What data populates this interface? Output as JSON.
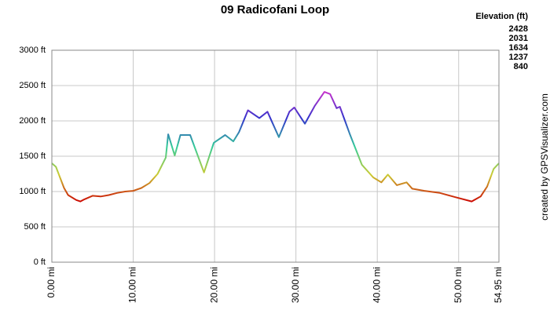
{
  "chart_data": {
    "type": "line",
    "title": "09 Radicofani Loop",
    "credit": "created by GPSVisualizer.com",
    "legend": {
      "title": "Elevation (ft)",
      "entries": [
        {
          "value": 2428,
          "color": "#cc33cc"
        },
        {
          "value": 2031,
          "color": "#3333cc"
        },
        {
          "value": 1634,
          "color": "#33cc99"
        },
        {
          "value": 1237,
          "color": "#cccc33"
        },
        {
          "value": 840,
          "color": "#cc0000"
        }
      ]
    },
    "x": [
      0,
      0.5,
      1,
      1.5,
      2,
      3,
      3.5,
      4,
      5,
      6,
      7,
      8,
      9,
      10,
      11,
      12,
      13,
      14,
      14.3,
      15.1,
      15.8,
      17,
      18.7,
      19.9,
      21.3,
      22.3,
      23,
      24.1,
      25.5,
      26.5,
      27.9,
      29.2,
      29.8,
      31.1,
      32.3,
      33.5,
      34.2,
      35,
      35.4,
      36.6,
      38.1,
      39.5,
      40.5,
      41.3,
      42.4,
      43.6,
      44.3,
      45.8,
      47.7,
      49.6,
      51.6,
      52.7,
      53.5,
      54.3,
      54.95
    ],
    "values": [
      1400,
      1350,
      1200,
      1050,
      950,
      880,
      860,
      890,
      940,
      930,
      950,
      980,
      1000,
      1010,
      1050,
      1120,
      1250,
      1480,
      1810,
      1510,
      1800,
      1800,
      1270,
      1690,
      1800,
      1710,
      1840,
      2150,
      2040,
      2130,
      1770,
      2130,
      2190,
      1960,
      2210,
      2410,
      2380,
      2180,
      2200,
      1820,
      1380,
      1200,
      1130,
      1240,
      1090,
      1130,
      1040,
      1010,
      980,
      920,
      860,
      930,
      1070,
      1320,
      1400
    ],
    "xlim": [
      0,
      54.95
    ],
    "xticks": [
      {
        "value": 0,
        "label": "0.00 mi"
      },
      {
        "value": 10,
        "label": "10.00 mi"
      },
      {
        "value": 20,
        "label": "20.00 mi"
      },
      {
        "value": 30,
        "label": "30.00 mi"
      },
      {
        "value": 40,
        "label": "40.00 mi"
      },
      {
        "value": 50,
        "label": "50.00 mi"
      },
      {
        "value": 54.95,
        "label": "54.95 mi"
      }
    ],
    "ylim": [
      0,
      3000
    ],
    "yticks": [
      {
        "value": 0,
        "label": "0 ft"
      },
      {
        "value": 500,
        "label": "500 ft"
      },
      {
        "value": 1000,
        "label": "1000 ft"
      },
      {
        "value": 1500,
        "label": "1500 ft"
      },
      {
        "value": 2000,
        "label": "2000 ft"
      },
      {
        "value": 2500,
        "label": "2500 ft"
      },
      {
        "value": 3000,
        "label": "3000 ft"
      }
    ],
    "grid": true
  }
}
